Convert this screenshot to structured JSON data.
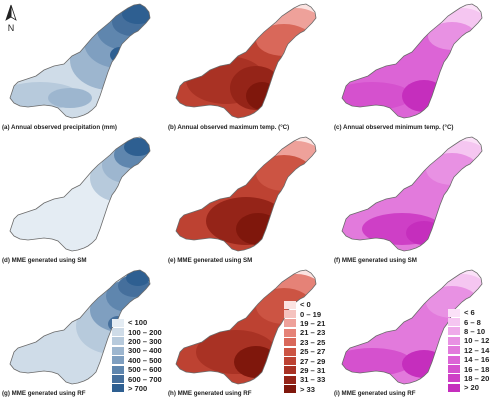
{
  "north_arrow": {
    "label": "N"
  },
  "captions": {
    "a": "(a) Annual observed precipitation (mm)",
    "b": "(b) Annual observed maximum temp. (°C)",
    "c": "(c) Annual  observed  minimum  temp. (°C)",
    "d": "(d) MME generated using SM",
    "e": "(e) MME generated using SM",
    "f": "(f) MME generated using SM",
    "g": "(g) MME generated using RF",
    "h": "(h) MME generated using RF",
    "i": "(i) MME generated using RF"
  },
  "legends": {
    "precipitation": {
      "labels": [
        "< 100",
        "100 – 200",
        "200 – 300",
        "300 – 400",
        "400 – 500",
        "500 – 600",
        "600 – 700",
        "> 700"
      ],
      "colors": [
        "#e4ecf3",
        "#cfdce8",
        "#b7cadc",
        "#9db6cf",
        "#7f9fc0",
        "#5f86ae",
        "#456f9c",
        "#2e5f91"
      ]
    },
    "max_temp": {
      "labels": [
        "< 0",
        "0 – 19",
        "19 – 21",
        "21 – 23",
        "23 – 25",
        "25 – 27",
        "27 – 29",
        "29 – 31",
        "31 – 33",
        "> 33"
      ],
      "colors": [
        "#fbe3e1",
        "#f5c2be",
        "#eea19a",
        "#e58277",
        "#d9685a",
        "#cc5443",
        "#bd4232",
        "#a93224",
        "#952418",
        "#7f170c"
      ]
    },
    "min_temp": {
      "labels": [
        "< 6",
        "6 – 8",
        "8 – 10",
        "10 – 12",
        "12 – 14",
        "14 – 16",
        "16 – 18",
        "18 – 20",
        "> 20"
      ],
      "colors": [
        "#fbe1f8",
        "#f5c6f1",
        "#efabea",
        "#e891e3",
        "#e27adc",
        "#dc64d6",
        "#d551ce",
        "#ce3fc6",
        "#c52ebd"
      ]
    }
  }
}
